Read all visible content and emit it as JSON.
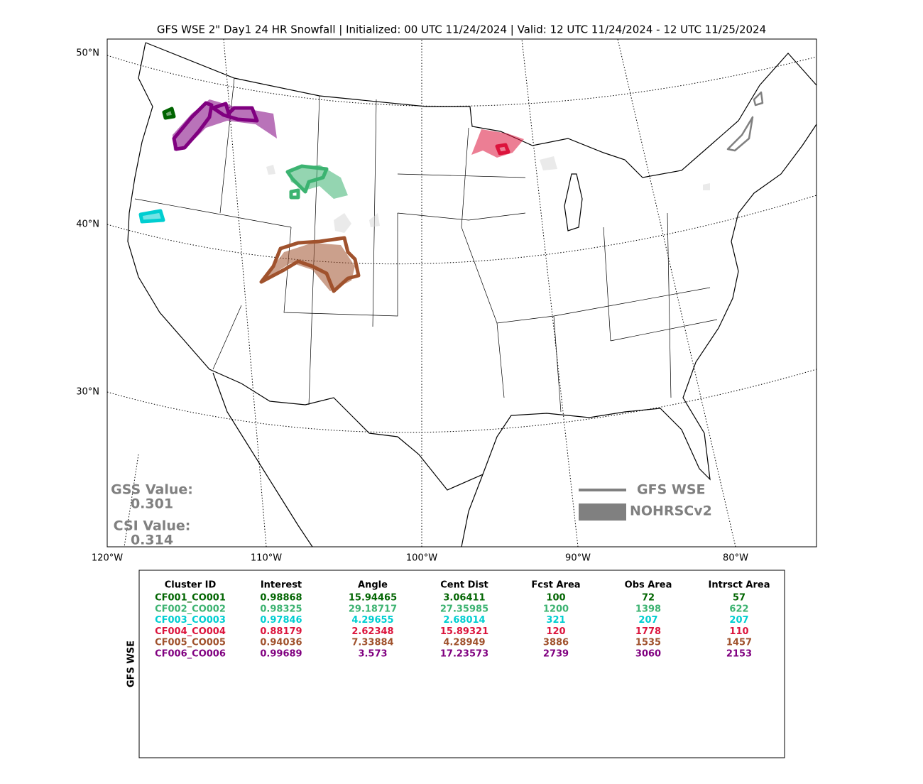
{
  "title": "GFS WSE 2\" Day1 24 HR Snowfall | Initialized: 00 UTC 11/24/2024 | Valid: 12 UTC 11/24/2024 - 12 UTC 11/25/2024",
  "map": {
    "lat_labels": [
      "50°N",
      "40°N",
      "30°N"
    ],
    "lon_labels": [
      "120°W",
      "110°W",
      "100°W",
      "90°W",
      "80°W"
    ]
  },
  "scores": {
    "gss_label": "GSS Value:",
    "gss": "0.301",
    "csi_label": "CSI Value:",
    "csi": "0.314"
  },
  "legend": {
    "forecast": "GFS WSE",
    "observed": "NOHRSCv2",
    "color": "#808080"
  },
  "table": {
    "row_label": "GFS WSE",
    "columns": [
      "Cluster ID",
      "Interest",
      "Angle",
      "Cent Dist",
      "Fcst Area",
      "Obs Area",
      "Intrsct Area"
    ],
    "colors": [
      "#006400",
      "#3cb371",
      "#00ced1",
      "#dc143c",
      "#a0522d",
      "#800080"
    ],
    "rows": [
      [
        "CF001_CO001",
        "0.98868",
        "15.94465",
        "3.06411",
        "100",
        "72",
        "57"
      ],
      [
        "CF002_CO002",
        "0.98325",
        "29.18717",
        "27.35985",
        "1200",
        "1398",
        "622"
      ],
      [
        "CF003_CO003",
        "0.97846",
        "4.29655",
        "2.68014",
        "321",
        "207",
        "207"
      ],
      [
        "CF004_CO004",
        "0.88179",
        "2.62348",
        "15.89321",
        "120",
        "1778",
        "110"
      ],
      [
        "CF005_CO005",
        "0.94036",
        "7.33884",
        "4.28949",
        "3886",
        "1535",
        "1457"
      ],
      [
        "CF006_CO006",
        "0.99689",
        "3.573",
        "17.23573",
        "2739",
        "3060",
        "2153"
      ]
    ]
  }
}
